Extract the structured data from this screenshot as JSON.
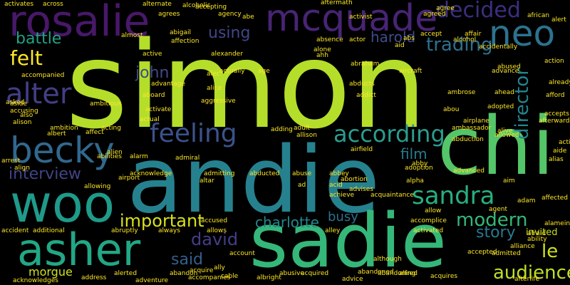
{
  "words": [
    {
      "text": "simon",
      "color": "#b5de2b"
    },
    {
      "text": "andie",
      "color": "#26818e"
    },
    {
      "text": "sadie",
      "color": "#35b779"
    },
    {
      "text": "chi",
      "color": "#54c568"
    },
    {
      "text": "rosalie",
      "color": "#48186a"
    },
    {
      "text": "mcquade",
      "color": "#482475"
    },
    {
      "text": "neo",
      "color": "#2c728e"
    },
    {
      "text": "woo",
      "color": "#1e9b8a"
    },
    {
      "text": "asher",
      "color": "#22a785"
    },
    {
      "text": "becky",
      "color": "#31688e"
    },
    {
      "text": "alter",
      "color": "#433e85"
    },
    {
      "text": "feeling",
      "color": "#3b528b"
    },
    {
      "text": "according",
      "color": "#2a9d8f"
    },
    {
      "text": "sandra",
      "color": "#29af7f"
    },
    {
      "text": "decided",
      "color": "#3b2f80"
    },
    {
      "text": "trading",
      "color": "#2d708e"
    },
    {
      "text": "interview",
      "color": "#414487"
    },
    {
      "text": "director",
      "color": "#25848e"
    },
    {
      "text": "audience",
      "color": "#bddf26"
    },
    {
      "text": "important",
      "color": "#d8e219"
    },
    {
      "text": "modern",
      "color": "#35b779"
    },
    {
      "text": "story",
      "color": "#2a788e"
    },
    {
      "text": "felt",
      "color": "#fde725"
    },
    {
      "text": "battle",
      "color": "#20a386"
    },
    {
      "text": "john",
      "color": "#3e4a89"
    },
    {
      "text": "using",
      "color": "#404688"
    },
    {
      "text": "harold",
      "color": "#3e4c8a"
    },
    {
      "text": "film",
      "color": "#297b8e"
    },
    {
      "text": "david",
      "color": "#433e85"
    },
    {
      "text": "said",
      "color": "#355e8d"
    },
    {
      "text": "charlotte",
      "color": "#24878e"
    },
    {
      "text": "busy",
      "color": "#2c718e"
    },
    {
      "text": "le",
      "color": "#d0e11c"
    },
    {
      "text": "morgue",
      "color": "#d0e11c"
    },
    {
      "text": "invited",
      "color": "#c2df23"
    },
    {
      "text": "accused",
      "color": "#fde725"
    },
    {
      "text": "accompanied",
      "color": "#fde725"
    },
    {
      "text": "ambitious",
      "color": "#fde725"
    },
    {
      "text": "activate",
      "color": "#fde725"
    },
    {
      "text": "airport",
      "color": "#fde725"
    },
    {
      "text": "afford",
      "color": "#fde725"
    },
    {
      "text": "affection",
      "color": "#fde725"
    },
    {
      "text": "abe",
      "color": "#fde725"
    },
    {
      "text": "aside",
      "color": "#fde725"
    },
    {
      "text": "advance",
      "color": "#fde725"
    },
    {
      "text": "ahead",
      "color": "#fde725"
    },
    {
      "text": "alive",
      "color": "#fde725"
    },
    {
      "text": "aim",
      "color": "#fde725"
    },
    {
      "text": "adopted",
      "color": "#fde725"
    },
    {
      "text": "agree",
      "color": "#fde725"
    },
    {
      "text": "agreed",
      "color": "#fde725"
    },
    {
      "text": "african",
      "color": "#fde725"
    },
    {
      "text": "alert",
      "color": "#fde725"
    },
    {
      "text": "accept",
      "color": "#fde725"
    },
    {
      "text": "affair",
      "color": "#fde725"
    },
    {
      "text": "alcohol",
      "color": "#fde725"
    },
    {
      "text": "accidentally",
      "color": "#fde725"
    },
    {
      "text": "abused",
      "color": "#fde725"
    },
    {
      "text": "already",
      "color": "#fde725"
    },
    {
      "text": "action",
      "color": "#fde725"
    },
    {
      "text": "abs",
      "color": "#fde725"
    },
    {
      "text": "absence",
      "color": "#fde725"
    },
    {
      "text": "actor",
      "color": "#fde725"
    },
    {
      "text": "actual",
      "color": "#fde725"
    },
    {
      "text": "admitting",
      "color": "#fde725"
    },
    {
      "text": "acknowledge",
      "color": "#fde725"
    },
    {
      "text": "allen",
      "color": "#fde725"
    },
    {
      "text": "agents",
      "color": "#fde725"
    },
    {
      "text": "able",
      "color": "#fde725"
    },
    {
      "text": "ad",
      "color": "#fde725"
    },
    {
      "text": "abbey",
      "color": "#fde725"
    },
    {
      "text": "abroad",
      "color": "#fde725"
    },
    {
      "text": "allows",
      "color": "#fde725"
    },
    {
      "text": "abroad2",
      "color": "#fde725"
    },
    {
      "text": "acquaintance",
      "color": "#fde725"
    },
    {
      "text": "activity",
      "color": "#fde725"
    },
    {
      "text": "accomplice",
      "color": "#fde725"
    },
    {
      "text": "ability",
      "color": "#fde725"
    },
    {
      "text": "afraid",
      "color": "#fde725"
    },
    {
      "text": "accepted",
      "color": "#fde725"
    },
    {
      "text": "abandon",
      "color": "#fde725"
    },
    {
      "text": "adventure",
      "color": "#fde725"
    },
    {
      "text": "abruptly",
      "color": "#fde725"
    },
    {
      "text": "additional",
      "color": "#fde725"
    },
    {
      "text": "accident",
      "color": "#fde725"
    },
    {
      "text": "activates",
      "color": "#fde725"
    },
    {
      "text": "across",
      "color": "#fde725"
    },
    {
      "text": "alternate",
      "color": "#fde725"
    },
    {
      "text": "agrees",
      "color": "#fde725"
    },
    {
      "text": "alcoholic",
      "color": "#fde725"
    },
    {
      "text": "aftermath",
      "color": "#fde725"
    },
    {
      "text": "activist",
      "color": "#fde725"
    },
    {
      "text": "alexander",
      "color": "#fde725"
    },
    {
      "text": "alec",
      "color": "#fde725"
    },
    {
      "text": "alone",
      "color": "#fde725"
    },
    {
      "text": "abraham",
      "color": "#fde725"
    },
    {
      "text": "advantage",
      "color": "#fde725"
    },
    {
      "text": "abducts",
      "color": "#fde725"
    },
    {
      "text": "aggressive",
      "color": "#fde725"
    },
    {
      "text": "alice",
      "color": "#fde725"
    },
    {
      "text": "addict",
      "color": "#fde725"
    },
    {
      "text": "ambrose",
      "color": "#fde725"
    },
    {
      "text": "alley",
      "color": "#fde725"
    },
    {
      "text": "ambassador",
      "color": "#fde725"
    },
    {
      "text": "abduction",
      "color": "#fde725"
    },
    {
      "text": "allowed",
      "color": "#fde725"
    },
    {
      "text": "accepts",
      "color": "#fde725"
    },
    {
      "text": "afterwards",
      "color": "#fde725"
    },
    {
      "text": "aide",
      "color": "#fde725"
    },
    {
      "text": "alias",
      "color": "#fde725"
    },
    {
      "text": "airfield",
      "color": "#fde725"
    },
    {
      "text": "abortion",
      "color": "#fde725"
    },
    {
      "text": "acid",
      "color": "#fde725"
    },
    {
      "text": "achieve",
      "color": "#fde725"
    },
    {
      "text": "advises",
      "color": "#fde725"
    },
    {
      "text": "alpha",
      "color": "#fde725"
    },
    {
      "text": "adam",
      "color": "#fde725"
    },
    {
      "text": "affected",
      "color": "#fde725"
    },
    {
      "text": "alamein",
      "color": "#fde725"
    },
    {
      "text": "alliance",
      "color": "#fde725"
    },
    {
      "text": "admitted",
      "color": "#fde725"
    },
    {
      "text": "abilities",
      "color": "#fde725"
    },
    {
      "text": "acting",
      "color": "#fde725"
    },
    {
      "text": "affect",
      "color": "#fde725"
    },
    {
      "text": "albert",
      "color": "#fde725"
    },
    {
      "text": "alison",
      "color": "#fde725"
    },
    {
      "text": "accusing",
      "color": "#fde725"
    },
    {
      "text": "also",
      "color": "#fde725"
    },
    {
      "text": "ambition",
      "color": "#fde725"
    },
    {
      "text": "asked",
      "color": "#fde725"
    },
    {
      "text": "aboard",
      "color": "#fde725"
    },
    {
      "text": "abandoning",
      "color": "#fde725"
    },
    {
      "text": "acquires",
      "color": "#fde725"
    },
    {
      "text": "afterlife",
      "color": "#fde725"
    },
    {
      "text": "advice",
      "color": "#fde725"
    },
    {
      "text": "acquired",
      "color": "#fde725"
    },
    {
      "text": "abandoned",
      "color": "#fde725"
    },
    {
      "text": "alfred",
      "color": "#fde725"
    },
    {
      "text": "although",
      "color": "#fde725"
    },
    {
      "text": "albright",
      "color": "#fde725"
    },
    {
      "text": "abusive",
      "color": "#fde725"
    },
    {
      "text": "account",
      "color": "#fde725"
    },
    {
      "text": "cable",
      "color": "#fde725"
    },
    {
      "text": "accompanies",
      "color": "#fde725"
    },
    {
      "text": "address",
      "color": "#fde725"
    },
    {
      "text": "acknowledges",
      "color": "#fde725"
    },
    {
      "text": "alerted",
      "color": "#fde725"
    },
    {
      "text": "adding",
      "color": "#fde725"
    },
    {
      "text": "adult",
      "color": "#fde725"
    },
    {
      "text": "allison",
      "color": "#fde725"
    },
    {
      "text": "abuse",
      "color": "#fde725"
    },
    {
      "text": "abducted",
      "color": "#fde725"
    },
    {
      "text": "accepting",
      "color": "#fde725"
    },
    {
      "text": "agency",
      "color": "#fde725"
    },
    {
      "text": "age",
      "color": "#fde725"
    },
    {
      "text": "actually",
      "color": "#fde725"
    },
    {
      "text": "almost",
      "color": "#fde725"
    },
    {
      "text": "abigail",
      "color": "#fde725"
    },
    {
      "text": "active",
      "color": "#fde725"
    },
    {
      "text": "admiral",
      "color": "#fde725"
    },
    {
      "text": "alarm",
      "color": "#fde725"
    },
    {
      "text": "alien",
      "color": "#fde725"
    },
    {
      "text": "allowing",
      "color": "#fde725"
    },
    {
      "text": "align",
      "color": "#fde725"
    },
    {
      "text": "arrest",
      "color": "#fde725"
    },
    {
      "text": "alongside",
      "color": "#fde725"
    },
    {
      "text": "academy",
      "color": "#fde725"
    },
    {
      "text": "aircraft",
      "color": "#fde725"
    },
    {
      "text": "abby",
      "color": "#fde725"
    },
    {
      "text": "agent",
      "color": "#fde725"
    },
    {
      "text": "allow",
      "color": "#fde725"
    },
    {
      "text": "airplane",
      "color": "#fde725"
    },
    {
      "text": "adoption",
      "color": "#fde725"
    },
    {
      "text": "advanced",
      "color": "#fde725"
    },
    {
      "text": "activated",
      "color": "#fde725"
    },
    {
      "text": "alley2",
      "color": "#fde725"
    },
    {
      "text": "ally",
      "color": "#fde725"
    },
    {
      "text": "always",
      "color": "#fde725"
    },
    {
      "text": "acquire",
      "color": "#fde725"
    },
    {
      "text": "altar",
      "color": "#fde725"
    },
    {
      "text": "ally2",
      "color": "#fde725"
    },
    {
      "text": "ahh",
      "color": "#fde725"
    },
    {
      "text": "aid",
      "color": "#fde725"
    },
    {
      "text": "alcohol2",
      "color": "#fde725"
    },
    {
      "text": "abou",
      "color": "#fde725"
    },
    {
      "text": "aunt",
      "color": "#fde725"
    },
    {
      "text": "accessible",
      "color": "#fde725"
    },
    {
      "text": "ago",
      "color": "#fde725"
    }
  ]
}
